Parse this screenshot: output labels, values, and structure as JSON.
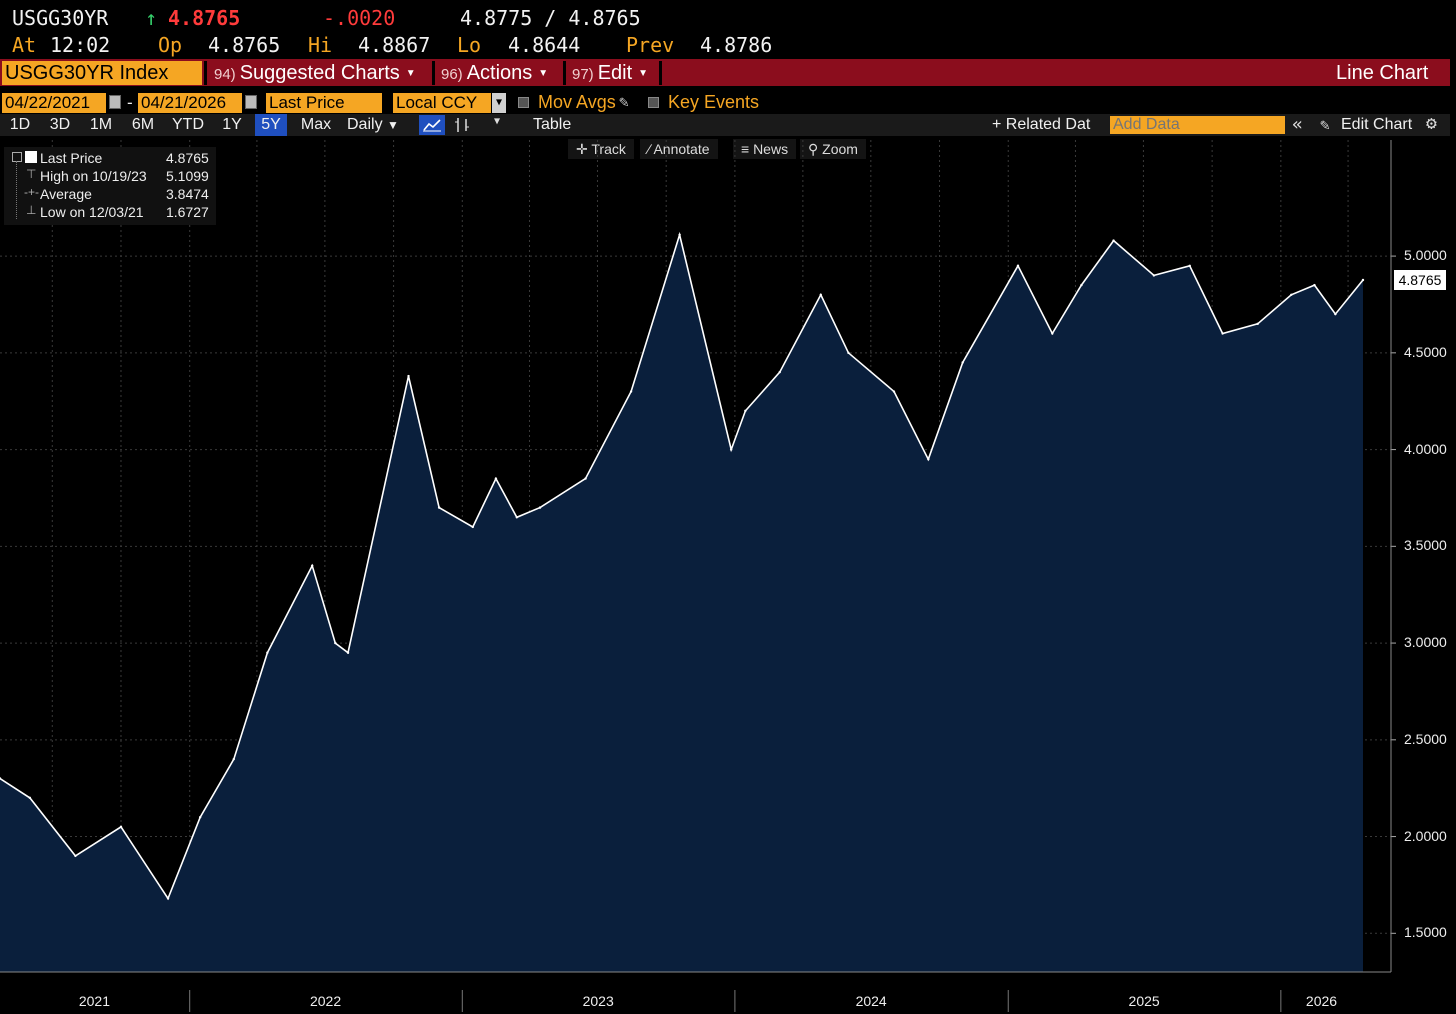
{
  "quote": {
    "ticker": "USGG30YR",
    "direction_icon": "up-arrow-icon",
    "last": "4.8765",
    "change": "-.0020",
    "bid_ask": "4.8775 / 4.8765",
    "time_label": "At",
    "time": "12:02",
    "open_label": "Op",
    "open": "4.8765",
    "high_label": "Hi",
    "high": "4.8867",
    "low_label": "Lo",
    "low": "4.8644",
    "prev_label": "Prev",
    "prev": "4.8786"
  },
  "function_bar": {
    "security": "USGG30YR Index",
    "items": [
      {
        "num": "94)",
        "label": "Suggested Charts"
      },
      {
        "num": "96)",
        "label": "Actions"
      },
      {
        "num": "97)",
        "label": "Edit"
      }
    ],
    "chart_type": "Line Chart"
  },
  "settings": {
    "start_date": "04/22/2021",
    "date_sep": "-",
    "end_date": "04/21/2026",
    "field": "Last Price",
    "currency": "Local CCY",
    "mov_avgs": "Mov Avgs",
    "key_events": "Key Events"
  },
  "periods": [
    "1D",
    "3D",
    "1M",
    "6M",
    "YTD",
    "1Y",
    "5Y",
    "Max"
  ],
  "selected_period": "5Y",
  "frequency": "Daily",
  "table_label": "Table",
  "related_data": "+ Related Dat",
  "add_data_placeholder": "Add Data",
  "edit_chart": "Edit Chart",
  "chart_tools": [
    "Track",
    "Annotate",
    "News",
    "Zoom"
  ],
  "legend": {
    "last_label": "Last Price",
    "last_value": "4.8765",
    "high_label": "High on 10/19/23",
    "high_value": "5.1099",
    "avg_label": "Average",
    "avg_value": "3.8474",
    "low_label": "Low on 12/03/21",
    "low_value": "1.6727"
  },
  "colors": {
    "amber": "#f5a623",
    "function_bar": "#8b0d1d",
    "area_fill": "#0a1f3c",
    "line": "#ffffff",
    "selected_period": "#1f4fbf"
  },
  "chart_data": {
    "type": "area",
    "series": [
      {
        "name": "Last Price",
        "x": [
          "2021-04-22",
          "2021-06-01",
          "2021-08-01",
          "2021-10-01",
          "2021-12-03",
          "2022-01-15",
          "2022-03-01",
          "2022-04-15",
          "2022-06-14",
          "2022-07-15",
          "2022-08-01",
          "2022-10-21",
          "2022-12-01",
          "2023-01-15",
          "2023-02-15",
          "2023-03-15",
          "2023-04-15",
          "2023-06-15",
          "2023-08-15",
          "2023-10-19",
          "2023-12-27",
          "2024-01-15",
          "2024-03-01",
          "2024-04-25",
          "2024-06-01",
          "2024-08-01",
          "2024-09-16",
          "2024-11-01",
          "2025-01-14",
          "2025-03-01",
          "2025-04-09",
          "2025-05-22",
          "2025-07-15",
          "2025-09-01",
          "2025-10-15",
          "2025-12-01",
          "2026-01-15",
          "2026-02-15",
          "2026-03-15",
          "2026-04-21"
        ],
        "y": [
          2.3,
          2.2,
          1.9,
          2.05,
          1.68,
          2.1,
          2.4,
          2.95,
          3.4,
          3.0,
          2.95,
          4.38,
          3.7,
          3.6,
          3.85,
          3.65,
          3.7,
          3.85,
          4.3,
          5.11,
          4.0,
          4.2,
          4.4,
          4.8,
          4.5,
          4.3,
          3.95,
          4.45,
          4.95,
          4.6,
          4.85,
          5.08,
          4.9,
          4.95,
          4.6,
          4.65,
          4.8,
          4.85,
          4.7,
          4.8765
        ]
      }
    ],
    "xlim": [
      "2021-04-22",
      "2026-04-21"
    ],
    "ylim": [
      1.3,
      5.6
    ],
    "y_ticks": [
      1.5,
      2.0,
      2.5,
      3.0,
      3.5,
      4.0,
      4.5,
      5.0
    ],
    "y_tick_labels": [
      "1.5000",
      "2.0000",
      "2.5000",
      "3.0000",
      "3.5000",
      "4.0000",
      "4.5000",
      "5.0000"
    ],
    "x_ticks": [
      "2021",
      "2022",
      "2023",
      "2024",
      "2025",
      "2026"
    ],
    "last_value_label": "4.8765",
    "grid": true
  }
}
